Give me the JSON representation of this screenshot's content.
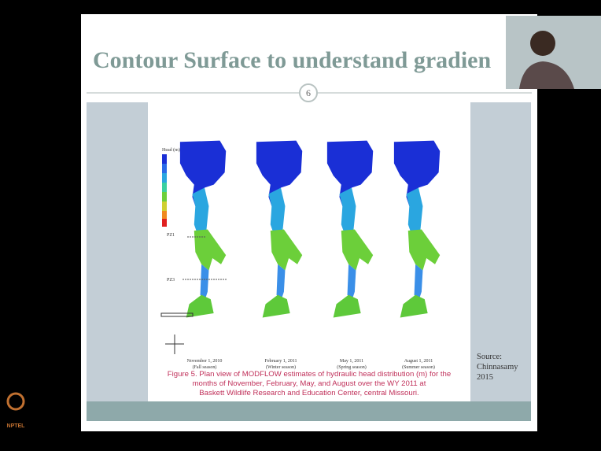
{
  "slide": {
    "title": "Contour Surface to understand gradien",
    "number": "6"
  },
  "figure": {
    "legend_title": "Head (m)",
    "wells": [
      "PZ1",
      "PZ3"
    ],
    "maps": [
      [
        "November 1, 2010",
        "(Fall season)"
      ],
      [
        "February 1, 2011",
        "(Winter season)"
      ],
      [
        "May 1, 2011",
        "(Spring season)"
      ],
      [
        "August 1, 2011",
        "(Summer season)"
      ]
    ],
    "caption": [
      "Figure 5. Plan view of MODFLOW estimates of hydraulic head distribution (m) for the",
      "months of November, February, May, and August over the WY 2011 at",
      "Baskett Wildlife Research and Education Center, central Missouri."
    ]
  },
  "source": [
    "Source:",
    "Chinnasamy",
    "2015"
  ],
  "logo": "NPTEL"
}
